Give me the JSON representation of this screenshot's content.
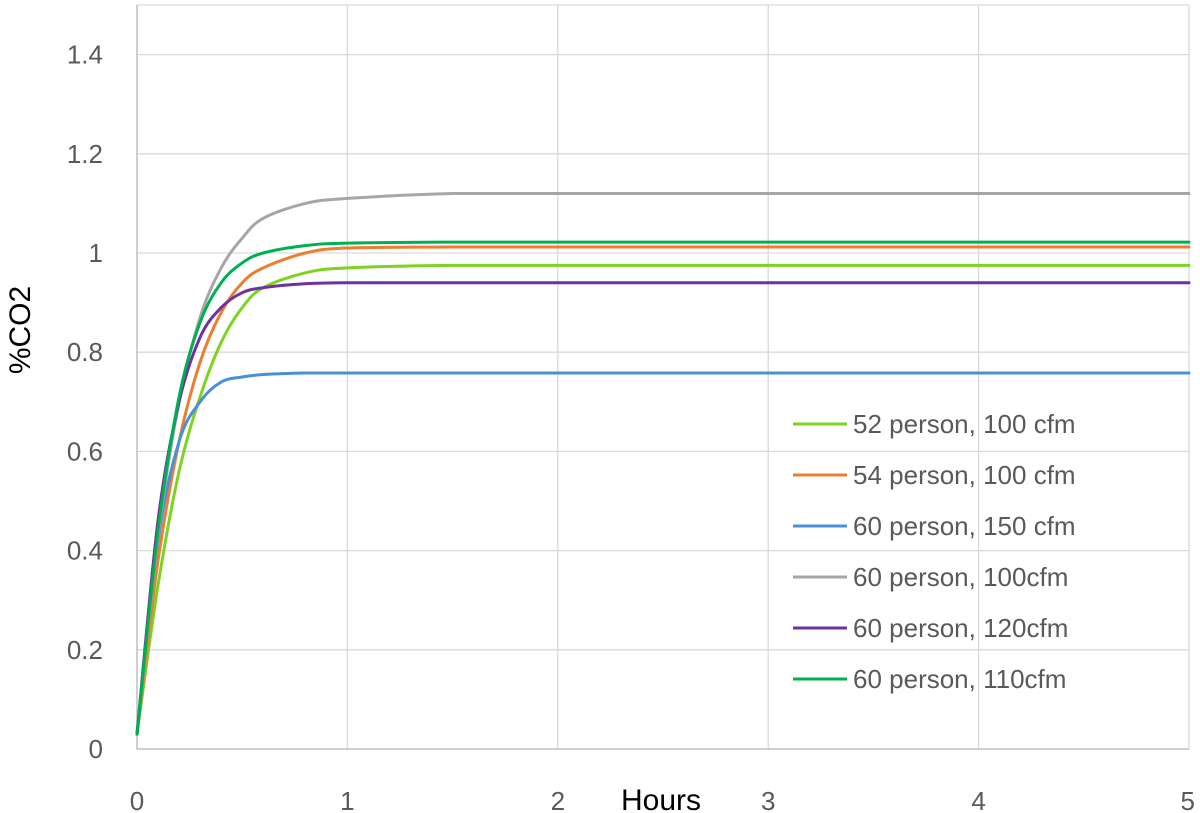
{
  "chart_data": {
    "type": "line",
    "title": "",
    "xlabel": "Hours",
    "ylabel": "%CO2",
    "xlim": [
      0,
      5
    ],
    "ylim": [
      0,
      1.5
    ],
    "x_ticks": [
      "0",
      "1",
      "2",
      "3",
      "4",
      "5"
    ],
    "y_ticks": [
      "0",
      "0.2",
      "0.4",
      "0.6",
      "0.8",
      "1",
      "1.2",
      "1.4"
    ],
    "grid": true,
    "legend_position": "right",
    "series": [
      {
        "name": "52 person, 100 cfm",
        "color": "#7ed321",
        "x": [
          0,
          0.1,
          0.2,
          0.3,
          0.4,
          0.5,
          0.6,
          0.8,
          1.0,
          1.5,
          2,
          3,
          4,
          5
        ],
        "y": [
          0.03,
          0.33,
          0.56,
          0.71,
          0.82,
          0.89,
          0.93,
          0.96,
          0.97,
          0.975,
          0.975,
          0.975,
          0.975,
          0.975
        ]
      },
      {
        "name": "54 person, 100 cfm",
        "color": "#ed7d31",
        "x": [
          0,
          0.1,
          0.2,
          0.3,
          0.4,
          0.5,
          0.6,
          0.8,
          1.0,
          1.5,
          2,
          3,
          4,
          5
        ],
        "y": [
          0.03,
          0.38,
          0.62,
          0.78,
          0.88,
          0.94,
          0.97,
          1.0,
          1.01,
          1.012,
          1.012,
          1.012,
          1.012,
          1.012
        ]
      },
      {
        "name": "60 person, 150 cfm",
        "color": "#4a90d9",
        "x": [
          0,
          0.1,
          0.2,
          0.3,
          0.4,
          0.5,
          0.6,
          0.8,
          1.0,
          1.5,
          2,
          3,
          4,
          5
        ],
        "y": [
          0.03,
          0.42,
          0.62,
          0.7,
          0.74,
          0.75,
          0.755,
          0.758,
          0.758,
          0.758,
          0.758,
          0.758,
          0.758,
          0.758
        ]
      },
      {
        "name": "60 person, 100cfm",
        "color": "#a6a6a6",
        "x": [
          0,
          0.1,
          0.2,
          0.3,
          0.4,
          0.5,
          0.6,
          0.8,
          1.0,
          1.5,
          2,
          3,
          4,
          5
        ],
        "y": [
          0.03,
          0.43,
          0.7,
          0.87,
          0.97,
          1.03,
          1.07,
          1.1,
          1.11,
          1.12,
          1.12,
          1.12,
          1.12,
          1.12
        ]
      },
      {
        "name": "60 person, 120cfm",
        "color": "#7030a0",
        "x": [
          0,
          0.1,
          0.2,
          0.3,
          0.4,
          0.5,
          0.6,
          0.8,
          1.0,
          1.5,
          2,
          3,
          4,
          5
        ],
        "y": [
          0.03,
          0.46,
          0.7,
          0.83,
          0.89,
          0.92,
          0.93,
          0.938,
          0.94,
          0.94,
          0.94,
          0.94,
          0.94,
          0.94
        ]
      },
      {
        "name": "60 person, 110cfm",
        "color": "#00b050",
        "x": [
          0,
          0.1,
          0.2,
          0.3,
          0.4,
          0.5,
          0.6,
          0.8,
          1.0,
          1.5,
          2,
          3,
          4,
          5
        ],
        "y": [
          0.03,
          0.44,
          0.71,
          0.86,
          0.94,
          0.98,
          1.0,
          1.015,
          1.02,
          1.022,
          1.022,
          1.022,
          1.022,
          1.022
        ]
      }
    ]
  }
}
